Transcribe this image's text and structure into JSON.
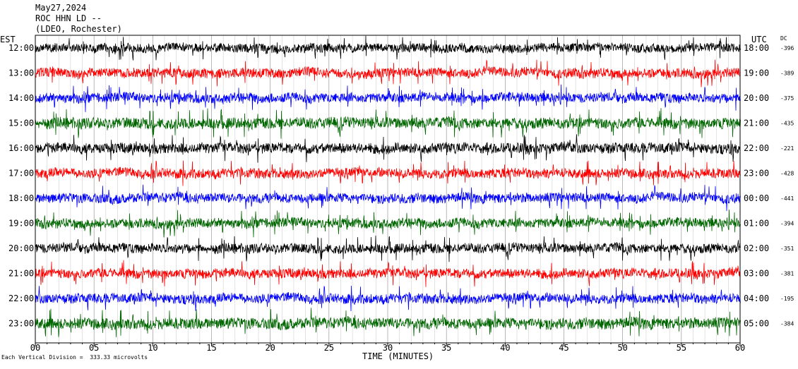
{
  "header": {
    "date": "May27,2024",
    "station": "ROC HHN LD --",
    "network": "(LDEO, Rochester)"
  },
  "axes": {
    "left_tz": "EST",
    "right_tz": "UTC",
    "dc_label": "DC",
    "x_title": "TIME (MINUTES)",
    "x_ticks": [
      "00",
      "05",
      "10",
      "15",
      "20",
      "25",
      "30",
      "35",
      "40",
      "45",
      "50",
      "55",
      "60"
    ]
  },
  "footer": {
    "scale_note": "Each Vertical Division =  333.33 microvolts"
  },
  "chart_data": {
    "type": "line",
    "title": "ROC HHN LD --",
    "xlabel": "TIME (MINUTES)",
    "xlim": [
      0,
      60
    ],
    "grid": true,
    "series": [
      {
        "local": "12:00",
        "utc": "18:00",
        "dc": "-396",
        "color": "#000000",
        "amp": 12
      },
      {
        "local": "13:00",
        "utc": "19:00",
        "dc": "-389",
        "color": "#ff0000",
        "amp": 13
      },
      {
        "local": "14:00",
        "utc": "20:00",
        "dc": "-375",
        "color": "#0000ff",
        "amp": 13
      },
      {
        "local": "15:00",
        "utc": "21:00",
        "dc": "-435",
        "color": "#006600",
        "amp": 15
      },
      {
        "local": "16:00",
        "utc": "22:00",
        "dc": "-221",
        "color": "#000000",
        "amp": 14
      },
      {
        "local": "17:00",
        "utc": "23:00",
        "dc": "-428",
        "color": "#ff0000",
        "amp": 13
      },
      {
        "local": "18:00",
        "utc": "00:00",
        "dc": "-441",
        "color": "#0000ff",
        "amp": 13
      },
      {
        "local": "19:00",
        "utc": "01:00",
        "dc": "-394",
        "color": "#006600",
        "amp": 13
      },
      {
        "local": "20:00",
        "utc": "02:00",
        "dc": "-351",
        "color": "#000000",
        "amp": 13
      },
      {
        "local": "21:00",
        "utc": "03:00",
        "dc": "-381",
        "color": "#ff0000",
        "amp": 13
      },
      {
        "local": "22:00",
        "utc": "04:00",
        "dc": "-195",
        "color": "#0000ff",
        "amp": 13
      },
      {
        "local": "23:00",
        "utc": "05:00",
        "dc": "-384",
        "color": "#006600",
        "amp": 15
      }
    ]
  }
}
